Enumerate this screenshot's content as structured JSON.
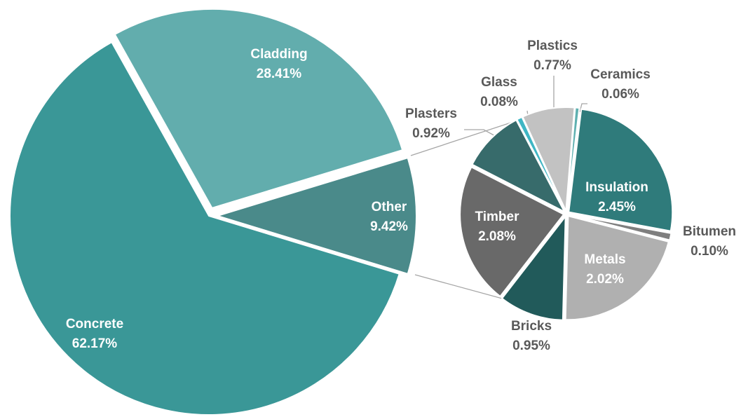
{
  "chart_data": [
    {
      "type": "pie",
      "categories": [
        "Cladding",
        "Other",
        "Concrete"
      ],
      "values": [
        28.41,
        9.42,
        62.17
      ],
      "value_labels": [
        "28.41%",
        "9.42%",
        "62.17%"
      ],
      "colors": [
        "#62adad",
        "#4a8a8a",
        "#3a9797"
      ]
    },
    {
      "type": "pie",
      "categories": [
        "Insulation",
        "Bitumen",
        "Metals",
        "Bricks",
        "Timber",
        "Plasters",
        "Glass",
        "Plastics",
        "Ceramics"
      ],
      "values": [
        2.45,
        0.1,
        2.02,
        0.95,
        2.08,
        0.92,
        0.08,
        0.77,
        0.06
      ],
      "value_labels": [
        "2.45%",
        "0.10%",
        "2.02%",
        "0.95%",
        "2.08%",
        "0.92%",
        "0.08%",
        "0.77%",
        "0.06%"
      ],
      "colors": [
        "#2f7b7b",
        "#7f7f7f",
        "#b0b0b0",
        "#215a5a",
        "#696969",
        "#376b6b",
        "#3fb6c4",
        "#c2c2c2",
        "#5fb0b0"
      ]
    }
  ]
}
